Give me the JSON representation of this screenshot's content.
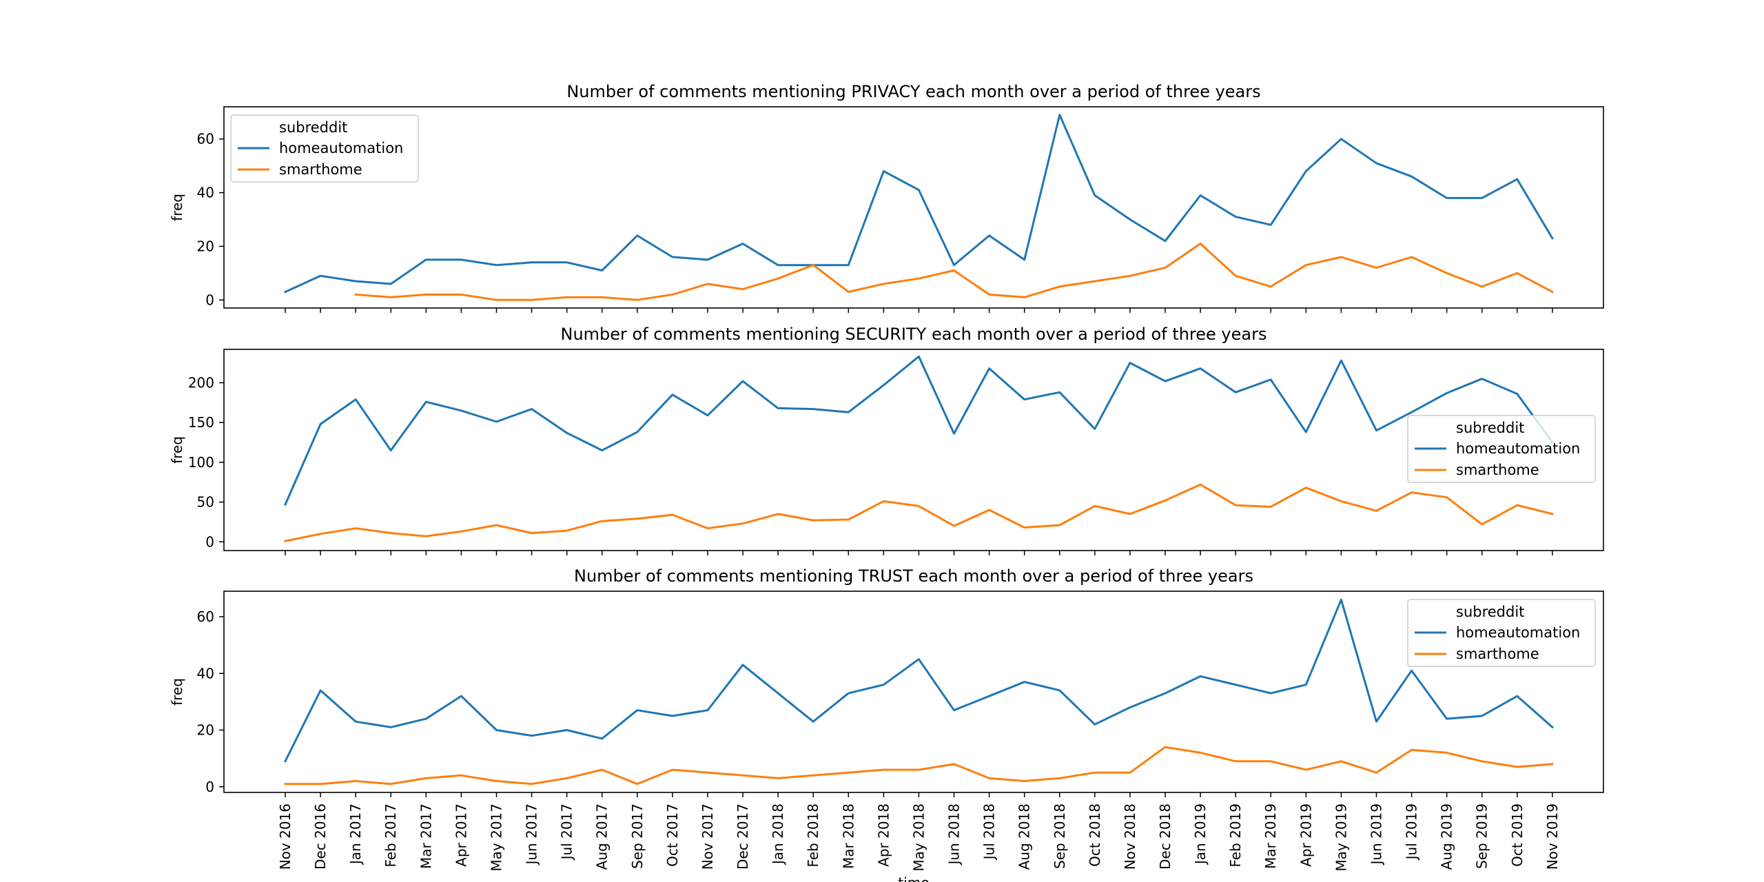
{
  "colors": {
    "homeautomation": "#1f77b4",
    "smarthome": "#ff7f0e"
  },
  "chart_data": [
    {
      "type": "line",
      "title": "Number of comments mentioning PRIVACY each month over a period of three years",
      "ylabel": "freq",
      "xlabel": "",
      "ylim": [
        -3,
        72
      ],
      "yticks": [
        0,
        20,
        40,
        60
      ],
      "legend": {
        "title": "subreddit",
        "placement": "top-left"
      },
      "series": [
        {
          "name": "homeautomation",
          "values": [
            3,
            9,
            7,
            6,
            15,
            15,
            13,
            14,
            14,
            11,
            24,
            16,
            15,
            21,
            13,
            13,
            13,
            48,
            41,
            13,
            24,
            15,
            69,
            39,
            30,
            22,
            39,
            31,
            28,
            48,
            60,
            51,
            46,
            38,
            38,
            45,
            23
          ]
        },
        {
          "name": "smarthome",
          "values": [
            null,
            null,
            2,
            1,
            2,
            2,
            0,
            0,
            1,
            1,
            0,
            2,
            6,
            4,
            8,
            13,
            3,
            6,
            8,
            11,
            2,
            1,
            5,
            7,
            9,
            12,
            21,
            9,
            5,
            13,
            16,
            12,
            16,
            10,
            5,
            10,
            3
          ]
        }
      ]
    },
    {
      "type": "line",
      "title": "Number of comments mentioning SECURITY each month over a period of three years",
      "ylabel": "freq",
      "xlabel": "",
      "ylim": [
        -11,
        242
      ],
      "yticks": [
        0,
        50,
        100,
        150,
        200
      ],
      "legend": {
        "title": "subreddit",
        "placement": "right"
      },
      "series": [
        {
          "name": "homeautomation",
          "values": [
            47,
            148,
            179,
            115,
            176,
            165,
            151,
            167,
            137,
            115,
            138,
            185,
            159,
            202,
            168,
            167,
            163,
            197,
            233,
            136,
            218,
            179,
            188,
            142,
            225,
            202,
            218,
            188,
            204,
            138,
            228,
            140,
            163,
            187,
            205,
            186,
            125
          ]
        },
        {
          "name": "smarthome",
          "values": [
            1,
            10,
            17,
            11,
            7,
            13,
            21,
            11,
            14,
            26,
            29,
            34,
            17,
            23,
            35,
            27,
            28,
            51,
            45,
            20,
            40,
            18,
            21,
            45,
            35,
            52,
            72,
            46,
            44,
            68,
            51,
            39,
            62,
            56,
            22,
            46,
            35
          ]
        }
      ]
    },
    {
      "type": "line",
      "title": "Number of comments mentioning TRUST each month over a period of three years",
      "ylabel": "freq",
      "xlabel": "time",
      "ylim": [
        -2,
        69
      ],
      "yticks": [
        0,
        20,
        40,
        60
      ],
      "legend": {
        "title": "subreddit",
        "placement": "top-right"
      },
      "series": [
        {
          "name": "homeautomation",
          "values": [
            9,
            34,
            23,
            21,
            24,
            32,
            20,
            18,
            20,
            17,
            27,
            25,
            27,
            43,
            33,
            23,
            33,
            36,
            45,
            27,
            32,
            37,
            34,
            22,
            28,
            33,
            39,
            36,
            33,
            36,
            66,
            23,
            41,
            24,
            25,
            32,
            21
          ]
        },
        {
          "name": "smarthome",
          "values": [
            1,
            1,
            2,
            1,
            3,
            4,
            2,
            1,
            3,
            6,
            1,
            6,
            5,
            4,
            3,
            4,
            5,
            6,
            6,
            8,
            3,
            2,
            3,
            5,
            5,
            14,
            12,
            9,
            9,
            6,
            9,
            5,
            13,
            12,
            9,
            7,
            8
          ]
        }
      ]
    }
  ],
  "x_categories": [
    "Nov 2016",
    "Dec 2016",
    "Jan 2017",
    "Feb 2017",
    "Mar 2017",
    "Apr 2017",
    "May 2017",
    "Jun 2017",
    "Jul 2017",
    "Aug 2017",
    "Sep 2017",
    "Oct 2017",
    "Nov 2017",
    "Dec 2017",
    "Jan 2018",
    "Feb 2018",
    "Mar 2018",
    "Apr 2018",
    "May 2018",
    "Jun 2018",
    "Jul 2018",
    "Aug 2018",
    "Sep 2018",
    "Oct 2018",
    "Nov 2018",
    "Dec 2018",
    "Jan 2019",
    "Feb 2019",
    "Mar 2019",
    "Apr 2019",
    "May 2019",
    "Jun 2019",
    "Jul 2019",
    "Aug 2019",
    "Sep 2019",
    "Oct 2019",
    "Nov 2019"
  ]
}
